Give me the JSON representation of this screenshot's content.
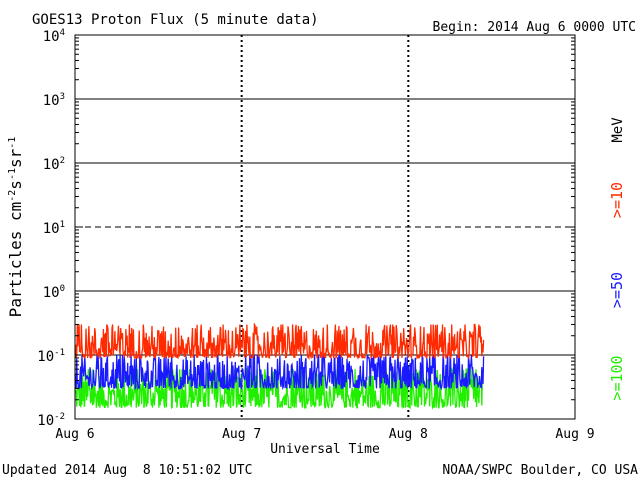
{
  "chart_data": {
    "type": "line",
    "title": "GOES13 Proton Flux (5 minute data)",
    "begin_label": "Begin: 2014 Aug 6 0000 UTC",
    "xlabel": "Universal Time",
    "ylabel_base": "Particles cm",
    "x_ticks": [
      "Aug 6",
      "Aug 7",
      "Aug 8",
      "Aug 9"
    ],
    "xlim_days": [
      0,
      3
    ],
    "y_scale": "log",
    "ylim": [
      0.01,
      10000
    ],
    "y_ticks": [
      {
        "value": 0.01,
        "base": "10",
        "exp": "-2"
      },
      {
        "value": 0.1,
        "base": "10",
        "exp": "-1"
      },
      {
        "value": 1,
        "base": "10",
        "exp": "0"
      },
      {
        "value": 10,
        "base": "10",
        "exp": "1"
      },
      {
        "value": 100,
        "base": "10",
        "exp": "2"
      },
      {
        "value": 1000,
        "base": "10",
        "exp": "3"
      },
      {
        "value": 10000,
        "base": "10",
        "exp": "4"
      }
    ],
    "series": [
      {
        "name": ">=10",
        "color": "#ff2a00",
        "typical_range": [
          0.09,
          0.3
        ],
        "start_day": 0,
        "end_day": 2.45
      },
      {
        "name": ">=50",
        "color": "#1a1aff",
        "typical_range": [
          0.03,
          0.1
        ],
        "start_day": 0,
        "end_day": 2.45
      },
      {
        "name": ">=100",
        "color": "#22ee00",
        "typical_range": [
          0.015,
          0.06
        ],
        "start_day": 0,
        "end_day": 2.45
      }
    ],
    "unit_label": "MeV",
    "footer_left": "Updated 2014 Aug  8 10:51:02 UTC",
    "footer_right": "NOAA/SWPC Boulder, CO USA"
  }
}
